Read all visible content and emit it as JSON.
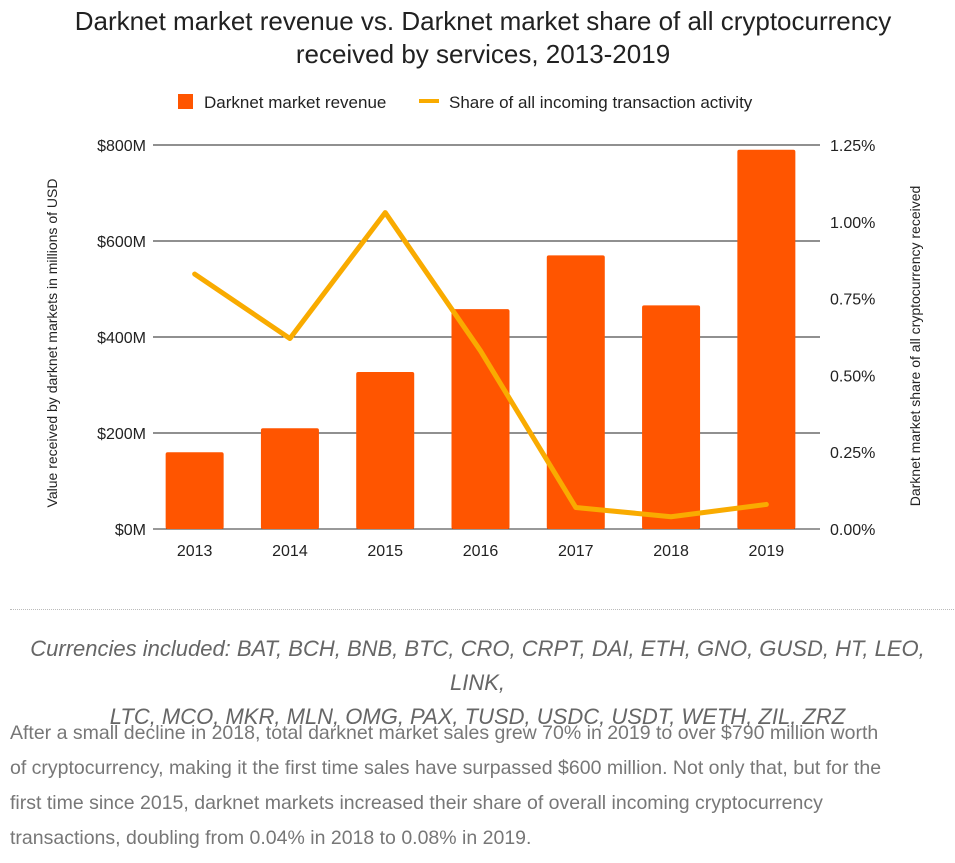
{
  "chart_data": {
    "type": "bar",
    "title_lines": [
      "Darknet market revenue vs. Darknet market share of all cryptocurrency",
      "received by services, 2013-2019"
    ],
    "categories": [
      "2013",
      "2014",
      "2015",
      "2016",
      "2017",
      "2018",
      "2019"
    ],
    "series": [
      {
        "name": "Darknet market revenue",
        "type": "bar",
        "axis": "left",
        "color": "#ff5500",
        "values": [
          160,
          210,
          327,
          458,
          570,
          466,
          790
        ]
      },
      {
        "name": "Share of all incoming transaction activity",
        "type": "line",
        "axis": "right",
        "color": "#f9ab00",
        "values": [
          0.83,
          0.62,
          1.03,
          0.58,
          0.07,
          0.04,
          0.08
        ]
      }
    ],
    "y_left": {
      "label": "Value received by darknet markets in millions of USD",
      "range": [
        0,
        800
      ],
      "ticks": [
        0,
        200,
        400,
        600,
        800
      ],
      "tick_labels": [
        "$0M",
        "$200M",
        "$400M",
        "$600M",
        "$800M"
      ]
    },
    "y_right": {
      "label": "Darknet market share of all cryptocurrency received",
      "range": [
        0,
        1.25
      ],
      "ticks": [
        0,
        0.25,
        0.5,
        0.75,
        1.0,
        1.25
      ],
      "tick_labels": [
        "0.00%",
        "0.25%",
        "0.50%",
        "0.75%",
        "1.00%",
        "1.25%"
      ]
    },
    "grid": true,
    "legend_position": "top"
  },
  "caption": {
    "lines": [
      "Currencies included: BAT, BCH, BNB, BTC, CRO, CRPT, DAI, ETH, GNO, GUSD, HT, LEO, LINK,",
      "LTC, MCO, MKR, MLN, OMG, PAX, TUSD, USDC, USDT, WETH, ZIL, ZRZ"
    ]
  },
  "paragraph": {
    "lines": [
      "After a small decline in 2018, total darknet market sales grew 70% in 2019 to over $790 million worth",
      "of cryptocurrency, making it the first time sales have surpassed $600 million. Not only that, but for the",
      "first time since 2015, darknet markets increased their share of overall incoming cryptocurrency",
      "transactions, doubling from 0.04% in 2018 to 0.08% in 2019."
    ]
  }
}
